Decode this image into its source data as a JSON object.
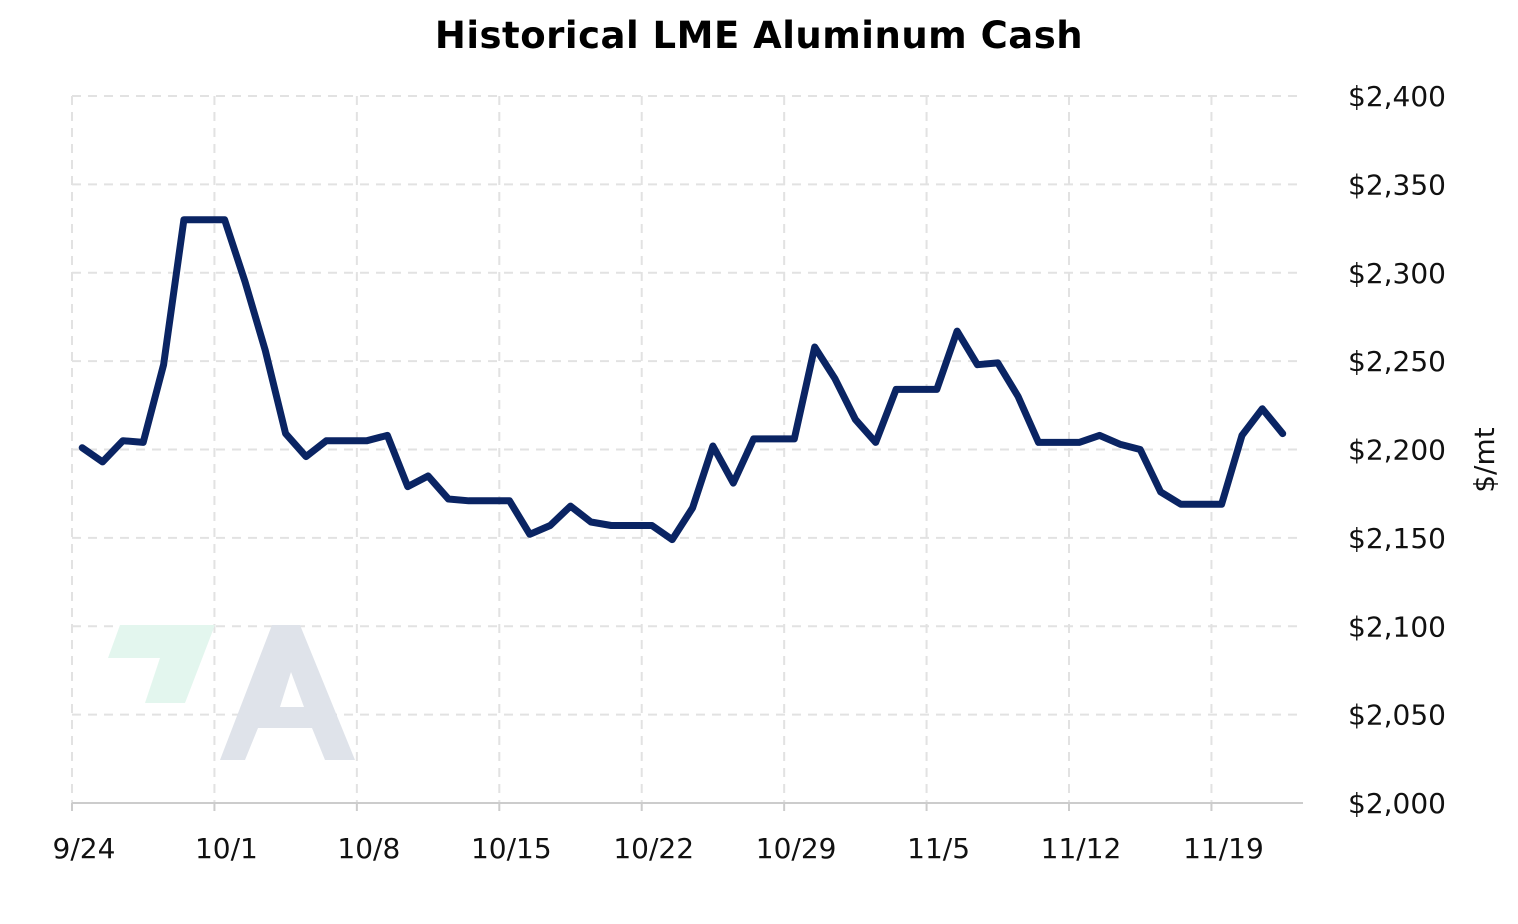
{
  "chart_data": {
    "type": "line",
    "title": "Historical LME Aluminum Cash",
    "xlabel": "",
    "ylabel": "$/mt",
    "ylim": [
      2000,
      2400
    ],
    "y_ticks": [
      "$2,000",
      "$2,050",
      "$2,100",
      "$2,150",
      "$2,200",
      "$2,250",
      "$2,300",
      "$2,350",
      "$2,400"
    ],
    "y_tick_values": [
      2000,
      2050,
      2100,
      2150,
      2200,
      2250,
      2300,
      2350,
      2400
    ],
    "y_axis_side": "right",
    "grid": true,
    "legend": "none",
    "x_ticks": [
      "9/24",
      "10/1",
      "10/8",
      "10/15",
      "10/22",
      "10/29",
      "11/5",
      "11/12",
      "11/19"
    ],
    "x_tick_days": [
      0,
      7,
      14,
      21,
      28,
      35,
      42,
      49,
      56
    ],
    "xlim_days": [
      0,
      60.5
    ],
    "line_color": "#0a2463",
    "series": [
      {
        "x_days": [
          0.5,
          1.5,
          2.5,
          3.5,
          4.5,
          5.5,
          6.5,
          7.5,
          8.5,
          9.5,
          10.5,
          11.5,
          12.5,
          13.5,
          14.5,
          15.5,
          16.5,
          17.5,
          18.5,
          19.5,
          20.5,
          21.5,
          22.5,
          23.5,
          24.5,
          25.5,
          26.5,
          27.5,
          28.5,
          29.5,
          30.5,
          31.5,
          32.5,
          33.5,
          34.5,
          35.5,
          36.5,
          37.5,
          38.5,
          39.5,
          40.5,
          41.5,
          42.5,
          43.5,
          44.5,
          45.5,
          46.5,
          47.5,
          48.5,
          49.5,
          50.5,
          51.5,
          52.5,
          53.5,
          54.5,
          55.5,
          56.5,
          57.5,
          58.5,
          59.5
        ],
        "values": [
          2201,
          2193,
          2205,
          2204,
          2248,
          2330,
          2330,
          2330,
          2295,
          2256,
          2209,
          2196,
          2205,
          2205,
          2205,
          2208,
          2179,
          2185,
          2172,
          2171,
          2171,
          2171,
          2152,
          2157,
          2168,
          2159,
          2157,
          2157,
          2157,
          2149,
          2167,
          2202,
          2181,
          2206,
          2206,
          2206,
          2258,
          2240,
          2217,
          2204,
          2234,
          2234,
          2234,
          2267,
          2248,
          2249,
          2230,
          2204,
          2204,
          2204,
          2208,
          2203,
          2200,
          2176,
          2169,
          2169,
          2169,
          2208,
          2223,
          2209
        ]
      }
    ]
  },
  "watermark": {
    "symbol_color_green": "#e3f6ee",
    "symbol_color_gray": "#dfe3ea"
  }
}
